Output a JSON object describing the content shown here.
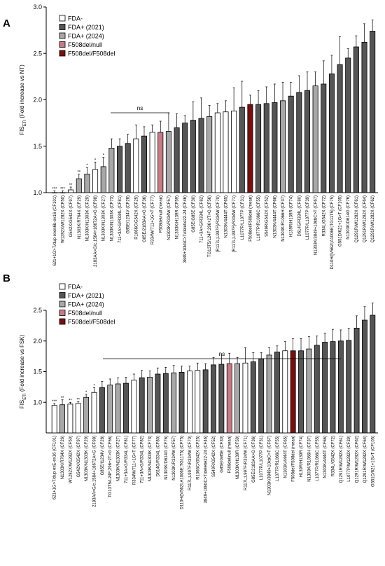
{
  "colors": {
    "FDA-": "#ffffff",
    "FDA+ (2021)": "#555555",
    "FDA+ (2024)": "#a8a8a8",
    "F508del/null": "#c97a85",
    "F508del/F508del": "#7a0e0e"
  },
  "chart_data": [
    {
      "panel": "A",
      "type": "bar",
      "ylabel": "FIS_ETI (Fold increase vs NT)",
      "ylim": [
        1.0,
        3.0
      ],
      "yticks": [
        "1.0",
        "1.5",
        "2.0",
        "2.5",
        "3.0"
      ],
      "legend": [
        "FDA-",
        "FDA+ (2021)",
        "FDA+ (2024)",
        "F508del/null",
        "F508del/F508del"
      ],
      "annotation": "ns",
      "bars": [
        {
          "label": "621+1G>T/dup exon6b-ex16 (CF101)",
          "value": 1.0,
          "err": 0.02,
          "group": "FDA-",
          "sig": "***"
        },
        {
          "label": "W1282X/W1282X (CF50)",
          "value": 1.0,
          "err": 0.02,
          "group": "FDA-",
          "sig": "***"
        },
        {
          "label": "G542X/G542X (CF97)",
          "value": 1.03,
          "err": 0.03,
          "group": "FDA-",
          "sig": "**"
        },
        {
          "label": "N1303K/R764X (CF29)",
          "value": 1.15,
          "err": 0.05,
          "group": "FDA+ (2024)",
          "sig": "**"
        },
        {
          "label": "N1303K/N1303K (CF29)",
          "value": 1.2,
          "err": 0.07,
          "group": "FDA+ (2024)",
          "sig": "*"
        },
        {
          "label": "2183AA>G/c.1584+18672A>G (CF98)",
          "value": 1.25,
          "err": 0.08,
          "group": "FDA-",
          "sig": "*"
        },
        {
          "label": "N1303K/N1303K (CF27)",
          "value": 1.28,
          "err": 0.1,
          "group": "FDA+ (2024)",
          "sig": "*"
        },
        {
          "label": "N1303K/N1303K (CF73)",
          "value": 1.48,
          "err": 0.1,
          "group": "FDA+ (2024)",
          "sig": ""
        },
        {
          "label": "711+3A>G/R334L (CF81)",
          "value": 1.5,
          "err": 0.08,
          "group": "FDA+ (2021)",
          "sig": ""
        },
        {
          "label": "G85E/1234V (CF28)",
          "value": 1.53,
          "err": 0.1,
          "group": "FDA+ (2021)",
          "sig": ""
        },
        {
          "label": "R1066C/G542X (CF25)",
          "value": 1.58,
          "err": 0.15,
          "group": "FDA-",
          "sig": ""
        },
        {
          "label": "G85E/2183AA>G (CF36)",
          "value": 1.61,
          "err": 0.1,
          "group": "FDA+ (2021)",
          "sig": ""
        },
        {
          "label": "R334W/711+1G>T (CF77)",
          "value": 1.65,
          "err": 0.08,
          "group": "FDA-",
          "sig": ""
        },
        {
          "label": "F508del/null (mean)",
          "value": 1.65,
          "err": 0.12,
          "group": "F508del/null",
          "sig": ""
        },
        {
          "label": "N1303K/R334W (CF57)",
          "value": 1.66,
          "err": 0.2,
          "group": "FDA+ (2024)",
          "sig": ""
        },
        {
          "label": "N1303K/H139R (CF59)",
          "value": 1.7,
          "err": 0.15,
          "group": "FDA+ (2021)",
          "sig": ""
        },
        {
          "label": "3849+10kbC>T/deletie22-24 (CF46)",
          "value": 1.75,
          "err": 0.08,
          "group": "FDA+ (2021)",
          "sig": ""
        },
        {
          "label": "G85E/G85E (CF30)",
          "value": 1.78,
          "err": 0.2,
          "group": "FDA+ (2021)",
          "sig": ""
        },
        {
          "label": "711+3A>G/R334L (CF82)",
          "value": 1.8,
          "err": 0.22,
          "group": "FDA+ (2021)",
          "sig": ""
        },
        {
          "label": "TG13T5/L24F;296+2T>G (CF56)",
          "value": 1.82,
          "err": 0.12,
          "group": "FDA+ (2024)",
          "sig": ""
        },
        {
          "label": "[R117L;L997F]/R334W (CF70)",
          "value": 1.86,
          "err": 0.1,
          "group": "FDA-",
          "sig": ""
        },
        {
          "label": "N1303K/4444T (CF65)",
          "value": 1.87,
          "err": 0.12,
          "group": "FDA-",
          "sig": ""
        },
        {
          "label": "[R117L;L997F]/R334W (CF71)",
          "value": 1.88,
          "err": 0.25,
          "group": "FDA-",
          "sig": ""
        },
        {
          "label": "L1077P/L1077P (CF31)",
          "value": 1.92,
          "err": 0.28,
          "group": "FDA+ (2021)",
          "sig": ""
        },
        {
          "label": "F508del/F508del (mean)",
          "value": 1.95,
          "err": 0.1,
          "group": "F508del/F508del",
          "sig": ""
        },
        {
          "label": "L1077P/R1066C (CF55)",
          "value": 1.95,
          "err": 0.15,
          "group": "FDA+ (2021)",
          "sig": ""
        },
        {
          "label": "S549R/G542X (CF52)",
          "value": 1.96,
          "err": 0.18,
          "group": "FDA+ (2021)",
          "sig": ""
        },
        {
          "label": "N1303K/4444T (CF66)",
          "value": 1.97,
          "err": 0.2,
          "group": "FDA+ (2021)",
          "sig": ""
        },
        {
          "label": "N1303K/R1066H (CF37)",
          "value": 1.99,
          "err": 0.2,
          "group": "FDA+ (2024)",
          "sig": ""
        },
        {
          "label": "H139R/H139R (CF74)",
          "value": 2.04,
          "err": 0.15,
          "group": "FDA+ (2021)",
          "sig": ""
        },
        {
          "label": "D614G/R334L (CF80)",
          "value": 2.08,
          "err": 0.18,
          "group": "FDA+ (2021)",
          "sig": ""
        },
        {
          "label": "L1077P/L1077P (CF39)",
          "value": 2.1,
          "err": 0.2,
          "group": "FDA+ (2021)",
          "sig": ""
        },
        {
          "label": "N1303K/3849+10kbC>T (CF67)",
          "value": 2.15,
          "err": 0.15,
          "group": "FDA+ (2024)",
          "sig": ""
        },
        {
          "label": "R334L/G542X (CF72)",
          "value": 2.17,
          "err": 0.25,
          "group": "FDA+ (2021)",
          "sig": ""
        },
        {
          "label": "D110H/[V562I;A1006E;TG11T5] (CF75)",
          "value": 2.28,
          "err": 0.2,
          "group": "FDA+ (2021)",
          "sig": ""
        },
        {
          "label": "G551D/621+1G>T (CF105)",
          "value": 2.38,
          "err": 0.3,
          "group": "FDA+ (2021)",
          "sig": ""
        },
        {
          "label": "N1303K/D614G (CF76)",
          "value": 2.45,
          "err": 0.1,
          "group": "FDA+ (2021)",
          "sig": ""
        },
        {
          "label": "Q1291R/W1282X (CF61)",
          "value": 2.57,
          "err": 0.12,
          "group": "FDA+ (2021)",
          "sig": ""
        },
        {
          "label": "Q1291R/W1282X (CF64)",
          "value": 2.62,
          "err": 0.2,
          "group": "FDA+ (2021)",
          "sig": ""
        },
        {
          "label": "Q1291R/W1282X (CF62)",
          "value": 2.74,
          "err": 0.12,
          "group": "FDA+ (2021)",
          "sig": ""
        }
      ]
    },
    {
      "panel": "B",
      "type": "bar",
      "ylabel": "FIS_ETI (Fold increase vs FSK)",
      "ylim": [
        0.5,
        2.5
      ],
      "yticks": [
        "1.0",
        "1.5",
        "2.0",
        "2.5"
      ],
      "legend": [
        "FDA-",
        "FDA+ (2021)",
        "FDA+ (2024)",
        "F508del/null",
        "F508del/F508del"
      ],
      "annotation": "ns",
      "bars": [
        {
          "label": "621+1G>T/dup exE-ex16 (CF101)",
          "value": 0.95,
          "err": 0.03,
          "group": "FDA-",
          "sig": "***"
        },
        {
          "label": "N1303K/R764X (CF26)",
          "value": 0.96,
          "err": 0.08,
          "group": "FDA+ (2024)",
          "sig": "**"
        },
        {
          "label": "W1282X/W1282X (CF50)",
          "value": 0.97,
          "err": 0.03,
          "group": "FDA-",
          "sig": "**"
        },
        {
          "label": "G542X/G542X (CF97)",
          "value": 0.98,
          "err": 0.03,
          "group": "FDA-",
          "sig": "**"
        },
        {
          "label": "N1303K/N1303K (CF29)",
          "value": 1.08,
          "err": 0.05,
          "group": "FDA+ (2024)",
          "sig": "*"
        },
        {
          "label": "2183AA>G/c.1584+18672A>G (CF98)",
          "value": 1.16,
          "err": 0.08,
          "group": "FDA-",
          "sig": "*"
        },
        {
          "label": "G85E/I1234V (CF28)",
          "value": 1.24,
          "err": 0.1,
          "group": "FDA+ (2021)",
          "sig": ""
        },
        {
          "label": "TG13T5/L24F;296+2T>G (CF56)",
          "value": 1.28,
          "err": 0.1,
          "group": "FDA+ (2024)",
          "sig": ""
        },
        {
          "label": "N1303K/N1303K (CF27)",
          "value": 1.3,
          "err": 0.1,
          "group": "FDA+ (2024)",
          "sig": ""
        },
        {
          "label": "711+3A>G/R334L (CF81)",
          "value": 1.31,
          "err": 0.1,
          "group": "FDA+ (2021)",
          "sig": ""
        },
        {
          "label": "R334W/711+1G>T (CF77)",
          "value": 1.36,
          "err": 0.1,
          "group": "FDA-",
          "sig": ""
        },
        {
          "label": "711+3A>G/R334L (CF82)",
          "value": 1.4,
          "err": 0.12,
          "group": "FDA+ (2021)",
          "sig": ""
        },
        {
          "label": "N1303K/N1303K (CF73)",
          "value": 1.41,
          "err": 0.1,
          "group": "FDA+ (2024)",
          "sig": ""
        },
        {
          "label": "D614G/R334L (CF80)",
          "value": 1.46,
          "err": 0.1,
          "group": "FDA+ (2021)",
          "sig": ""
        },
        {
          "label": "N1303K/D614G (CF76)",
          "value": 1.47,
          "err": 0.1,
          "group": "FDA+ (2021)",
          "sig": ""
        },
        {
          "label": "N1303K/R334W (CF57)",
          "value": 1.48,
          "err": 0.12,
          "group": "FDA+ (2024)",
          "sig": ""
        },
        {
          "label": "D110H/[V562I;A1006E;TG11T5] (CF75)",
          "value": 1.49,
          "err": 0.1,
          "group": "FDA+ (2021)",
          "sig": ""
        },
        {
          "label": "R117L;L997F/R334W (CF70)",
          "value": 1.51,
          "err": 0.08,
          "group": "FDA-",
          "sig": ""
        },
        {
          "label": "R1066C/G542X (CF25)",
          "value": 1.52,
          "err": 0.12,
          "group": "FDA-",
          "sig": ""
        },
        {
          "label": "3849+10kbC>T/deletie22-24 (CF46)",
          "value": 1.53,
          "err": 0.1,
          "group": "FDA+ (2021)",
          "sig": ""
        },
        {
          "label": "S549R/G542X (CF52)",
          "value": 1.61,
          "err": 0.12,
          "group": "FDA+ (2021)",
          "sig": ""
        },
        {
          "label": "G85E/G85E (CF30)",
          "value": 1.62,
          "err": 0.15,
          "group": "FDA+ (2021)",
          "sig": ""
        },
        {
          "label": "F508del/null (mean)",
          "value": 1.63,
          "err": 0.17,
          "group": "F508del/null",
          "sig": ""
        },
        {
          "label": "N1303K/H139R (CF59)",
          "value": 1.63,
          "err": 0.1,
          "group": "FDA+ (2024)",
          "sig": ""
        },
        {
          "label": "R117L;L997F/R334W (CF71)",
          "value": 1.64,
          "err": 0.25,
          "group": "FDA-",
          "sig": ""
        },
        {
          "label": "G85E/2183AA>G (CF36)",
          "value": 1.66,
          "err": 0.15,
          "group": "FDA+ (2021)",
          "sig": ""
        },
        {
          "label": "L1077P/L1077P (CF31)",
          "value": 1.71,
          "err": 0.1,
          "group": "FDA+ (2021)",
          "sig": ""
        },
        {
          "label": "N1303K/3849+10kbC>T (CF67)",
          "value": 1.77,
          "err": 0.12,
          "group": "FDA+ (2024)",
          "sig": ""
        },
        {
          "label": "L1077P/R1066C (CF55)",
          "value": 1.82,
          "err": 0.1,
          "group": "FDA+ (2021)",
          "sig": ""
        },
        {
          "label": "N1303K/4444T (CF65)",
          "value": 1.84,
          "err": 0.15,
          "group": "FDA-",
          "sig": ""
        },
        {
          "label": "F508del/F508del (mean)",
          "value": 1.84,
          "err": 0.2,
          "group": "F508del/F508del",
          "sig": ""
        },
        {
          "label": "H139R/H139R (CF74)",
          "value": 1.84,
          "err": 0.2,
          "group": "FDA+ (2021)",
          "sig": ""
        },
        {
          "label": "N1303K/R1066H (CF37)",
          "value": 1.87,
          "err": 0.2,
          "group": "FDA+ (2024)",
          "sig": ""
        },
        {
          "label": "L1077P/R1066C (CF55)",
          "value": 1.93,
          "err": 0.15,
          "group": "FDA+ (2021)",
          "sig": ""
        },
        {
          "label": "N1303K/4444T (CF66)",
          "value": 1.98,
          "err": 0.15,
          "group": "FDA+ (2021)",
          "sig": ""
        },
        {
          "label": "R334L/G542X (CF72)",
          "value": 1.99,
          "err": 0.2,
          "group": "FDA+ (2021)",
          "sig": ""
        },
        {
          "label": "Q1291R/W1282X (CF61)",
          "value": 2.0,
          "err": 0.18,
          "group": "FDA+ (2021)",
          "sig": ""
        },
        {
          "label": "L1077P/W1282X (CF39)",
          "value": 2.01,
          "err": 0.2,
          "group": "FDA+ (2021)",
          "sig": ""
        },
        {
          "label": "Q1291R/W1282X (CF62)",
          "value": 2.21,
          "err": 0.2,
          "group": "FDA+ (2021)",
          "sig": ""
        },
        {
          "label": "Q1291R/W1282X (CF64)",
          "value": 2.34,
          "err": 0.22,
          "group": "FDA+ (2021)",
          "sig": ""
        },
        {
          "label": "G551D/621+1G>T (CF105)",
          "value": 2.42,
          "err": 0.2,
          "group": "FDA+ (2021)",
          "sig": ""
        }
      ]
    }
  ]
}
